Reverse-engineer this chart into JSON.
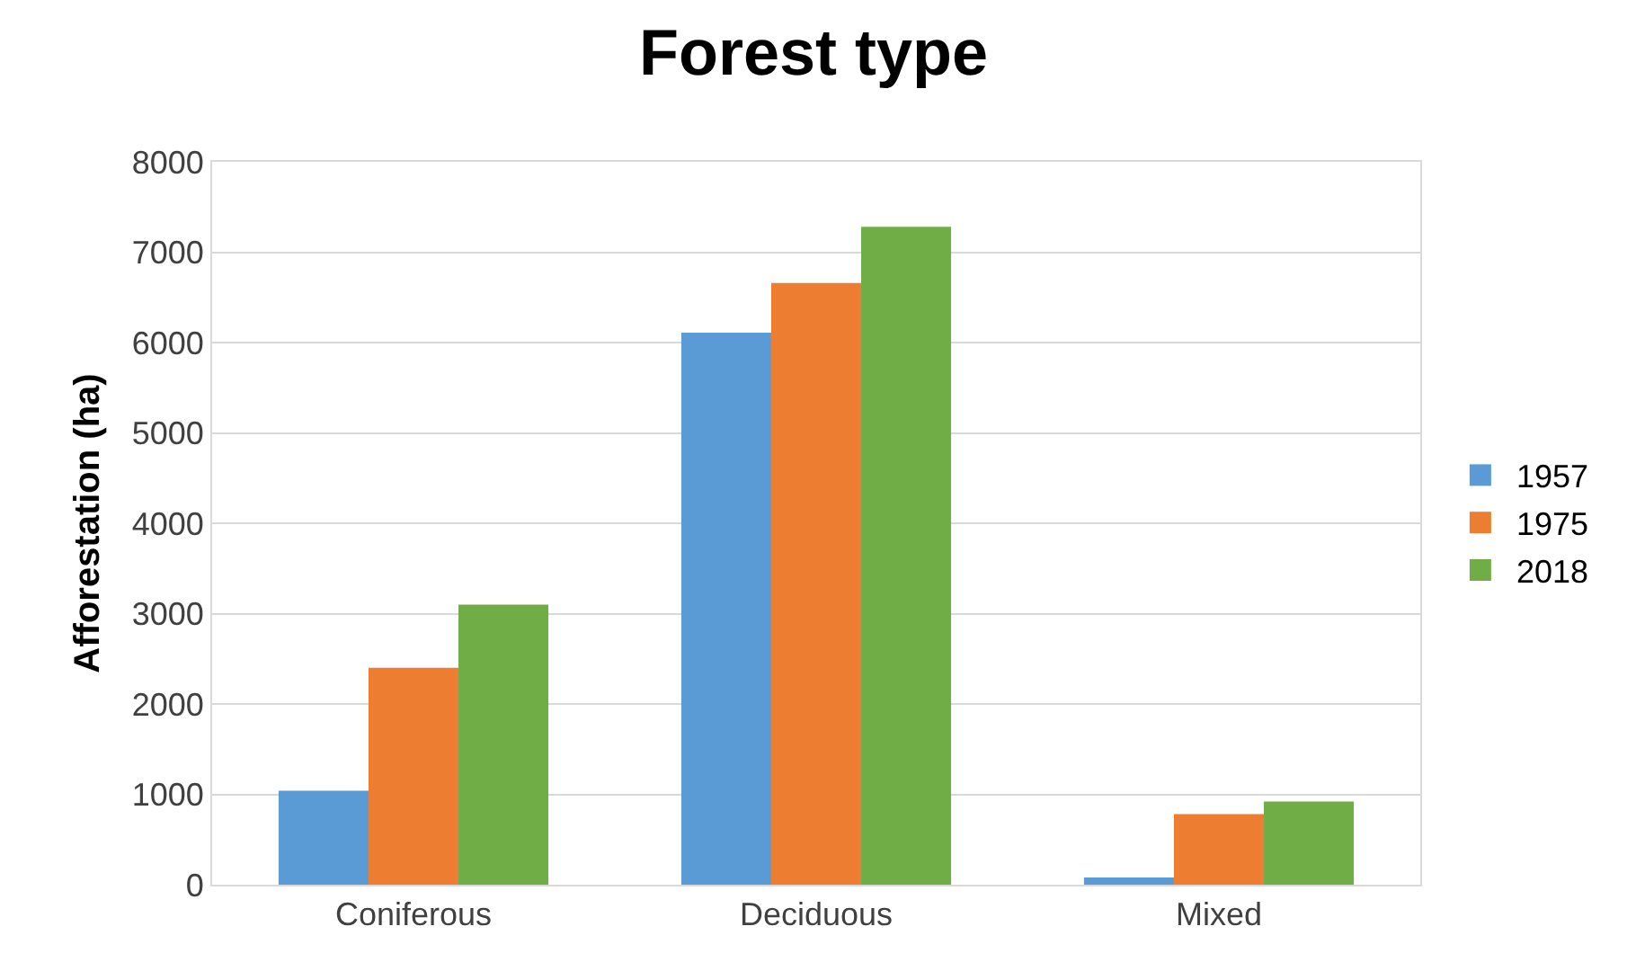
{
  "chart_data": {
    "type": "bar",
    "title": "Forest type",
    "ylabel": "Afforestation (ha)",
    "categories": [
      "Coniferous",
      "Deciduous",
      "Mixed"
    ],
    "series": [
      {
        "name": "1957",
        "color": "#5b9bd5",
        "values": [
          1040,
          6110,
          80
        ]
      },
      {
        "name": "1975",
        "color": "#ed7d31",
        "values": [
          2400,
          6660,
          780
        ]
      },
      {
        "name": "2018",
        "color": "#70ad47",
        "values": [
          3100,
          7280,
          920
        ]
      }
    ],
    "ylim": [
      0,
      8000
    ],
    "yticks": [
      0,
      1000,
      2000,
      3000,
      4000,
      5000,
      6000,
      7000,
      8000
    ],
    "grid": "y",
    "legend": "right"
  }
}
